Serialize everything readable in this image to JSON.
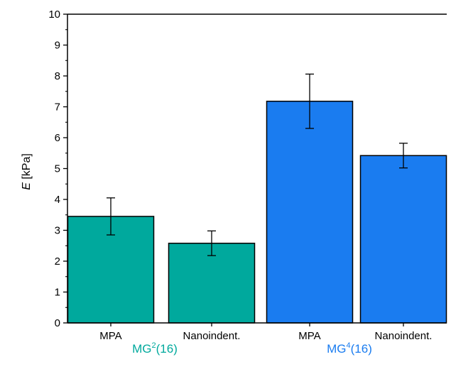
{
  "chart_data": {
    "type": "bar",
    "ylabel": {
      "symbol": "E",
      "unit": " [kPa]"
    },
    "ylim": [
      0,
      10
    ],
    "yticks": [
      0,
      1,
      2,
      3,
      4,
      5,
      6,
      7,
      8,
      9,
      10
    ],
    "grid": false,
    "bars": [
      {
        "category": "MPA",
        "group": "MG2(16)",
        "value": 3.45,
        "error": 0.6,
        "color": "#00a99d"
      },
      {
        "category": "Nanoindent.",
        "group": "MG2(16)",
        "value": 2.58,
        "error": 0.4,
        "color": "#00a99d"
      },
      {
        "category": "MPA",
        "group": "MG4(16)",
        "value": 7.18,
        "error": 0.88,
        "color": "#1a7cf0"
      },
      {
        "category": "Nanoindent.",
        "group": "MG4(16)",
        "value": 5.42,
        "error": 0.4,
        "color": "#1a7cf0"
      }
    ],
    "groups": [
      {
        "base": "MG",
        "sup": "2",
        "suffix": "(16)",
        "color": "#00a99d"
      },
      {
        "base": "MG",
        "sup": "4",
        "suffix": "(16)",
        "color": "#1a7cf0"
      }
    ]
  }
}
